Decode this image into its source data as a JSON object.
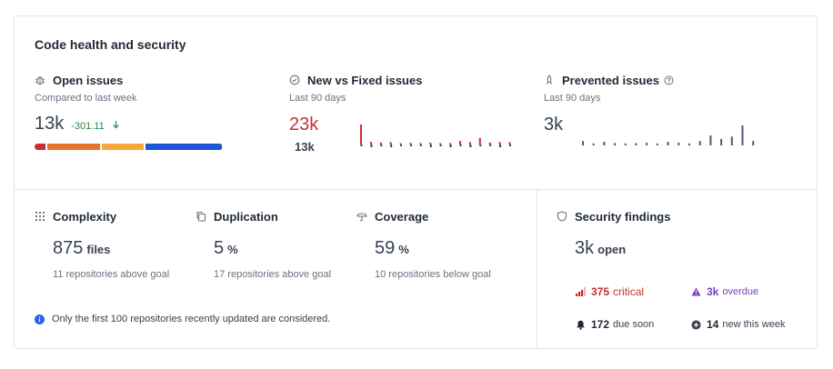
{
  "card_title": "Code health and security",
  "colors": {
    "critical": "#c8302f",
    "overdue": "#7b3fc4",
    "positive": "#2e8540",
    "neutral": "#374151",
    "muted": "#6b7280",
    "info": "#2563eb"
  },
  "open_issues": {
    "label": "Open issues",
    "icon": "bug-icon",
    "sub": "Compared to last week",
    "value": "13k",
    "delta": "-301.11",
    "severity_segments": [
      {
        "name": "critical",
        "color": "#c8302f",
        "share": 0.06
      },
      {
        "name": "high",
        "color": "#e5742b",
        "share": 0.29
      },
      {
        "name": "medium",
        "color": "#f6a83a",
        "share": 0.23
      },
      {
        "name": "low",
        "color": "#2256d9",
        "share": 0.42
      }
    ]
  },
  "new_vs_fixed": {
    "label": "New vs Fixed issues",
    "icon": "check-circle-icon",
    "sub": "Last 90 days",
    "new_value": "23k",
    "fixed_value": "13k",
    "new_series": [
      100,
      14,
      10,
      12,
      5,
      8,
      6,
      9,
      4,
      6,
      18,
      12,
      32,
      10,
      12,
      12
    ],
    "fixed_series": [
      2,
      3,
      2,
      3,
      2,
      2,
      2,
      3,
      2,
      3,
      2,
      3,
      2,
      2,
      3,
      2
    ]
  },
  "prevented": {
    "label": "Prevented issues",
    "icon": "rocket-icon",
    "help_icon": "help-circle-icon",
    "sub": "Last 90 days",
    "value": "3k",
    "series": [
      22,
      10,
      18,
      12,
      10,
      12,
      14,
      10,
      18,
      14,
      10,
      22,
      50,
      32,
      44,
      100,
      22
    ]
  },
  "metrics": [
    {
      "label": "Complexity",
      "icon": "grid-icon",
      "value": "875",
      "unit": "files",
      "note": "11 repositories above goal"
    },
    {
      "label": "Duplication",
      "icon": "copy-icon",
      "value": "5",
      "unit": "%",
      "note": "17 repositories above goal"
    },
    {
      "label": "Coverage",
      "icon": "umbrella-icon",
      "value": "59",
      "unit": "%",
      "note": "10 repositories below goal"
    }
  ],
  "info_note": "Only the first 100 repositories recently updated are considered.",
  "security": {
    "label": "Security findings",
    "icon": "shield-icon",
    "open_value": "3k",
    "open_unit": "open",
    "critical_count": "375",
    "critical_label": "critical",
    "overdue_count": "3k",
    "overdue_label": "overdue",
    "due_soon_count": "172",
    "due_soon_label": "due soon",
    "new_week_count": "14",
    "new_week_label": "new this week"
  }
}
